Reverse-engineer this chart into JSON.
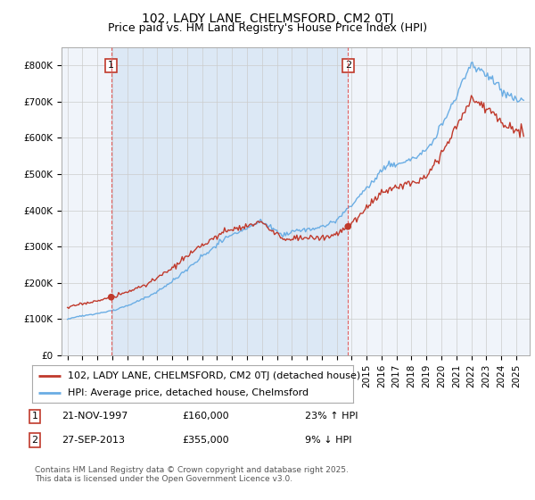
{
  "title": "102, LADY LANE, CHELMSFORD, CM2 0TJ",
  "subtitle": "Price paid vs. HM Land Registry's House Price Index (HPI)",
  "ylim": [
    0,
    850000
  ],
  "yticks": [
    0,
    100000,
    200000,
    300000,
    400000,
    500000,
    600000,
    700000,
    800000
  ],
  "ytick_labels": [
    "£0",
    "£100K",
    "£200K",
    "£300K",
    "£400K",
    "£500K",
    "£600K",
    "£700K",
    "£800K"
  ],
  "hpi_color": "#6aade4",
  "price_color": "#c0392b",
  "marker_color": "#c0392b",
  "grid_color": "#cccccc",
  "background_color": "#ffffff",
  "chart_bg": "#f0f4fa",
  "shade_color": "#dce8f5",
  "legend_label_price": "102, LADY LANE, CHELMSFORD, CM2 0TJ (detached house)",
  "legend_label_hpi": "HPI: Average price, detached house, Chelmsford",
  "annotation1_date": "21-NOV-1997",
  "annotation1_price": "£160,000",
  "annotation1_hpi": "23% ↑ HPI",
  "annotation2_date": "27-SEP-2013",
  "annotation2_price": "£355,000",
  "annotation2_hpi": "9% ↓ HPI",
  "footer": "Contains HM Land Registry data © Crown copyright and database right 2025.\nThis data is licensed under the Open Government Licence v3.0.",
  "sale1_year": 1997.92,
  "sale1_value": 160000,
  "sale2_year": 2013.75,
  "sale2_value": 355000,
  "title_fontsize": 10,
  "subtitle_fontsize": 9,
  "tick_fontsize": 7.5,
  "legend_fontsize": 8,
  "annotation_fontsize": 8,
  "footer_fontsize": 6.5
}
